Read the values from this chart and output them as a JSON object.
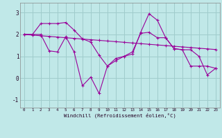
{
  "title": "",
  "xlabel": "Windchill (Refroidissement éolien,°C)",
  "ylabel": "",
  "bg_color": "#c0e8e8",
  "grid_color": "#a0cccc",
  "line_color": "#990099",
  "xlim": [
    -0.5,
    23.5
  ],
  "ylim": [
    -1.35,
    3.45
  ],
  "yticks": [
    -1,
    0,
    1,
    2,
    3
  ],
  "xticks": [
    0,
    1,
    2,
    3,
    4,
    5,
    6,
    7,
    8,
    9,
    10,
    11,
    12,
    13,
    14,
    15,
    16,
    17,
    18,
    19,
    20,
    21,
    22,
    23
  ],
  "series": [
    [
      2.0,
      2.0,
      2.0,
      1.25,
      1.2,
      1.9,
      1.2,
      -0.35,
      0.05,
      -0.7,
      0.55,
      0.9,
      1.0,
      1.1,
      2.1,
      2.95,
      2.65,
      1.85,
      1.35,
      1.3,
      1.3,
      1.0,
      0.15,
      0.45
    ],
    [
      2.0,
      2.0,
      2.5,
      2.5,
      2.5,
      2.55,
      2.2,
      1.8,
      1.65,
      1.05,
      0.55,
      0.8,
      1.0,
      1.2,
      2.05,
      2.1,
      1.85,
      1.85,
      1.35,
      1.3,
      0.55,
      0.55,
      0.55,
      0.45
    ],
    [
      2.0,
      1.97,
      1.94,
      1.91,
      1.88,
      1.85,
      1.82,
      1.79,
      1.76,
      1.73,
      1.7,
      1.67,
      1.64,
      1.61,
      1.58,
      1.55,
      1.52,
      1.49,
      1.46,
      1.43,
      1.4,
      1.37,
      1.34,
      1.31
    ]
  ]
}
